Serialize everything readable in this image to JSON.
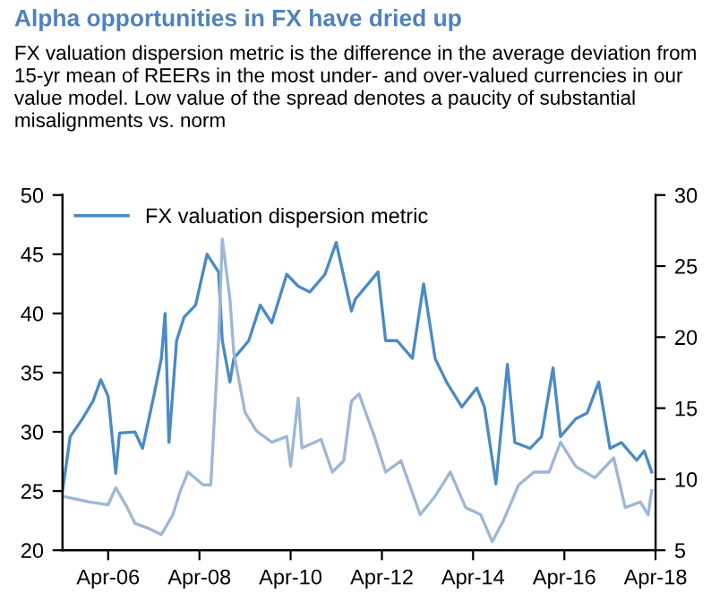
{
  "chart_data": {
    "type": "line",
    "title": "Alpha opportunities in FX have dried up",
    "subtitle": "FX valuation dispersion metric is the difference in the average deviation from 15-yr mean of REERs in the most under- and over-valued currencies in our value model. Low value of the spread denotes a paucity of substantial misalignments vs. norm",
    "series": [
      {
        "name": "FX valuation dispersion metric",
        "color": "#4a8ac6",
        "x": [
          "2005-04",
          "2005-06",
          "2005-09",
          "2005-12",
          "2006-02",
          "2006-04",
          "2006-06",
          "2006-07",
          "2006-11",
          "2007-01",
          "2007-04",
          "2007-06",
          "2007-07",
          "2007-08",
          "2007-10",
          "2007-12",
          "2008-03",
          "2008-06",
          "2008-09",
          "2008-10",
          "2008-12",
          "2009-01",
          "2009-05",
          "2009-08",
          "2009-11",
          "2010-03",
          "2010-06",
          "2010-09",
          "2011-01",
          "2011-04",
          "2011-08",
          "2011-09",
          "2012-03",
          "2012-05",
          "2012-08",
          "2012-12",
          "2013-03",
          "2013-06",
          "2013-09",
          "2014-01",
          "2014-05",
          "2014-07",
          "2014-10",
          "2015-01",
          "2015-03",
          "2015-07",
          "2015-10",
          "2016-01",
          "2016-03",
          "2016-07",
          "2016-10",
          "2017-01",
          "2017-04",
          "2017-07",
          "2017-11",
          "2018-01",
          "2018-03"
        ],
        "values": [
          25,
          29.6,
          31,
          32.6,
          34.4,
          33,
          26.5,
          29.9,
          30,
          28.6,
          33,
          36.2,
          40,
          29.1,
          37.7,
          39.7,
          40.7,
          45,
          43.5,
          37.7,
          34.2,
          36.2,
          37.7,
          40.7,
          39.2,
          43.3,
          42.3,
          41.8,
          43.3,
          46,
          40.2,
          41.2,
          43.5,
          37.7,
          37.7,
          36.2,
          42.5,
          36.2,
          34.2,
          32.1,
          33.7,
          32.1,
          25.6,
          35.7,
          29.1,
          28.6,
          29.6,
          35.4,
          29.6,
          31.1,
          31.6,
          34.2,
          28.6,
          29.1,
          27.6,
          28.4,
          26.6
        ]
      },
      {
        "axis": "y2",
        "color": "#9db7d6",
        "x": [
          "2005-04",
          "2005-11",
          "2006-04",
          "2006-06",
          "2006-09",
          "2006-11",
          "2007-03",
          "2007-06",
          "2007-09",
          "2007-11",
          "2008-01",
          "2008-05",
          "2008-07",
          "2008-09",
          "2008-10",
          "2008-12",
          "2009-01",
          "2009-04",
          "2009-07",
          "2009-11",
          "2010-03",
          "2010-04",
          "2010-06",
          "2010-07",
          "2010-12",
          "2011-03",
          "2011-06",
          "2011-08",
          "2011-10",
          "2012-02",
          "2012-05",
          "2012-09",
          "2013-02",
          "2013-06",
          "2013-10",
          "2014-02",
          "2014-06",
          "2014-09",
          "2014-12",
          "2015-04",
          "2015-08",
          "2015-12",
          "2016-03",
          "2016-07",
          "2016-12",
          "2017-05",
          "2017-08",
          "2017-12",
          "2018-02",
          "2018-03"
        ],
        "values": [
          8.8,
          8.4,
          8.2,
          9.4,
          8.0,
          6.9,
          6.5,
          6.1,
          7.5,
          9.2,
          10.5,
          9.6,
          9.6,
          19.8,
          26.9,
          22.7,
          18.9,
          14.7,
          13.4,
          12.6,
          13.0,
          10.9,
          15.7,
          12.2,
          12.8,
          10.5,
          11.3,
          15.5,
          16.0,
          13.0,
          10.5,
          11.3,
          7.5,
          8.8,
          10.5,
          8.0,
          7.5,
          5.6,
          7.1,
          9.6,
          10.5,
          10.5,
          12.6,
          10.9,
          10.1,
          11.5,
          8.0,
          8.4,
          7.5,
          9.2
        ]
      }
    ],
    "xlim": [
      "2005-04",
      "2018-04"
    ],
    "xticks": [
      {
        "value": "2006-04",
        "label": "Apr-06"
      },
      {
        "value": "2008-04",
        "label": "Apr-08"
      },
      {
        "value": "2010-04",
        "label": "Apr-10"
      },
      {
        "value": "2012-04",
        "label": "Apr-12"
      },
      {
        "value": "2014-04",
        "label": "Apr-14"
      },
      {
        "value": "2016-04",
        "label": "Apr-16"
      },
      {
        "value": "2018-04",
        "label": "Apr-18"
      }
    ],
    "ylim": [
      20,
      50
    ],
    "yticks": [
      20,
      25,
      30,
      35,
      40,
      45,
      50
    ],
    "y2lim": [
      5,
      30
    ],
    "y2ticks": [
      5,
      10,
      15,
      20,
      25,
      30
    ],
    "grid": false,
    "legend": "top left",
    "marker": "none",
    "line_style": "solid"
  }
}
